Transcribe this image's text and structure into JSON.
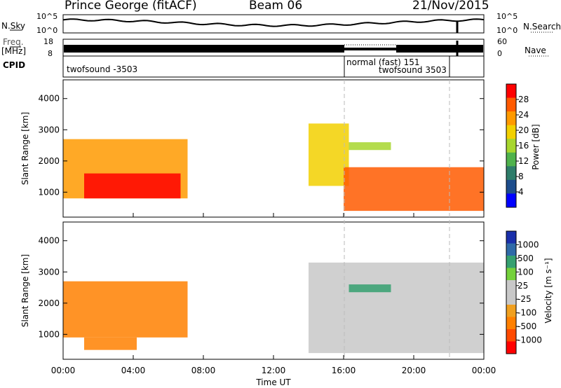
{
  "header": {
    "station": "Prince George (fitACF)",
    "beam": "Beam 06",
    "date": "21/Nov/2015"
  },
  "side_labels": {
    "nsky": "N.Sky",
    "freq_line1": "Freq.",
    "freq_line2": "[MHz]",
    "cpid": "CPID",
    "nsearch": "N.Search",
    "nave": "Nave"
  },
  "noise_panel": {
    "left_ticks": [
      "10^5",
      "10^0"
    ],
    "right_ticks": [
      "10^5",
      "10^0"
    ]
  },
  "freq_panel": {
    "left_ticks": [
      "18",
      "8"
    ],
    "right_ticks": [
      "60",
      "0"
    ]
  },
  "cpid_panel": {
    "segments": [
      {
        "label": "twofsound -3503",
        "start": "00:00",
        "end": "16:00"
      },
      {
        "label": "normal (fast) 151",
        "start": "16:00",
        "end": "22:00"
      },
      {
        "label": "twofsound 3503",
        "start": "16:00",
        "end": "22:00"
      }
    ]
  },
  "power_colorbar": {
    "label": "Power [dB]",
    "ticks": [
      "28",
      "24",
      "20",
      "16",
      "12",
      "8",
      "4"
    ],
    "colors": [
      "#ff0000",
      "#ff5a00",
      "#ff9a00",
      "#f2d000",
      "#a7d62e",
      "#4fb24c",
      "#2e7d6a",
      "#1d4d8c",
      "#0000ff"
    ]
  },
  "velocity_colorbar": {
    "label": "Velocity [m s⁻¹]",
    "ticks": [
      "1000",
      "500",
      "100",
      "25",
      "-25",
      "-100",
      "-500",
      "-1000"
    ],
    "colors": [
      "#1a2faa",
      "#2f6aa8",
      "#35a070",
      "#74d13b",
      "#c8c8c8",
      "#c8c8c8",
      "#f0a020",
      "#ff8000",
      "#ff4a00",
      "#ff0000"
    ]
  },
  "chart_data": [
    {
      "type": "heatmap",
      "name": "power",
      "ylabel": "Slant Range [km]",
      "xlabel": "",
      "ylim": [
        200,
        4600
      ],
      "y_ticks": [
        "1000",
        "2000",
        "3000",
        "4000"
      ],
      "x_ticks": [
        "00:00",
        "04:00",
        "08:00",
        "12:00",
        "16:00",
        "20:00",
        "00:00"
      ],
      "echo_regions": [
        {
          "start_hour": 0.0,
          "end_hour": 7.1,
          "range_low_km": 800,
          "range_high_km": 2700,
          "power_db": 20
        },
        {
          "start_hour": 1.2,
          "end_hour": 6.7,
          "range_low_km": 800,
          "range_high_km": 1600,
          "power_db": 28
        },
        {
          "start_hour": 14.0,
          "end_hour": 16.3,
          "range_low_km": 1200,
          "range_high_km": 3200,
          "power_db": 18
        },
        {
          "start_hour": 16.0,
          "end_hour": 24.0,
          "range_low_km": 400,
          "range_high_km": 1800,
          "power_db": 26
        },
        {
          "start_hour": 16.3,
          "end_hour": 18.7,
          "range_low_km": 2350,
          "range_high_km": 2600,
          "power_db": 12
        }
      ]
    },
    {
      "type": "heatmap",
      "name": "velocity",
      "ylabel": "Slant Range [km]",
      "xlabel": "Time UT",
      "ylim": [
        200,
        4600
      ],
      "y_ticks": [
        "1000",
        "2000",
        "3000",
        "4000"
      ],
      "x_ticks": [
        "00:00",
        "04:00",
        "08:00",
        "12:00",
        "16:00",
        "20:00",
        "00:00"
      ],
      "echo_regions": [
        {
          "start_hour": 0.0,
          "end_hour": 7.1,
          "range_low_km": 900,
          "range_high_km": 2700,
          "velocity_ms": -200
        },
        {
          "start_hour": 1.2,
          "end_hour": 4.2,
          "range_low_km": 500,
          "range_high_km": 900,
          "velocity_ms": -300
        },
        {
          "start_hour": 14.0,
          "end_hour": 24.0,
          "range_low_km": 400,
          "range_high_km": 3300,
          "velocity_ms": 0
        },
        {
          "start_hour": 16.3,
          "end_hour": 18.7,
          "range_low_km": 2350,
          "range_high_km": 2600,
          "velocity_ms": 150
        }
      ]
    }
  ]
}
